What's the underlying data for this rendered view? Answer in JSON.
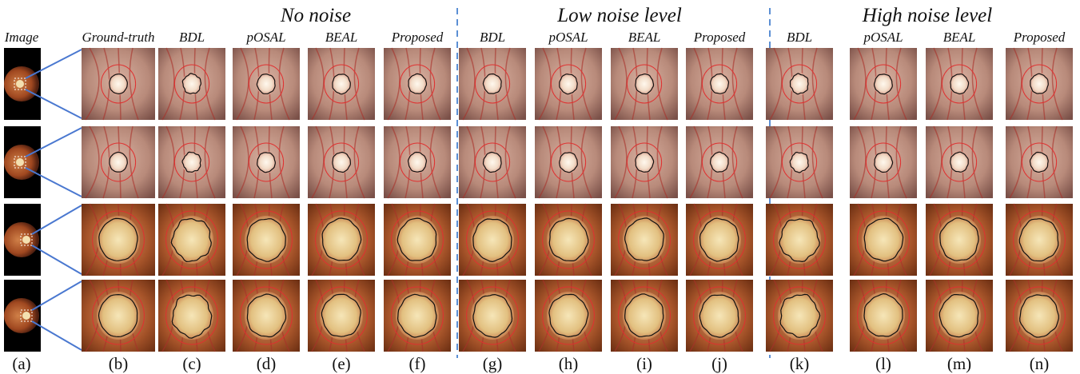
{
  "groups": [
    {
      "title": "No noise"
    },
    {
      "title": "Low noise level"
    },
    {
      "title": "High noise level"
    }
  ],
  "columns": [
    {
      "label": "Image",
      "letter": "(a)"
    },
    {
      "label": "Ground-truth",
      "letter": "(b)"
    },
    {
      "label": "BDL",
      "letter": "(c)"
    },
    {
      "label": "pOSAL",
      "letter": "(d)"
    },
    {
      "label": "BEAL",
      "letter": "(e)"
    },
    {
      "label": "Proposed",
      "letter": "(f)"
    },
    {
      "label": "BDL",
      "letter": "(g)"
    },
    {
      "label": "pOSAL",
      "letter": "(h)"
    },
    {
      "label": "BEAL",
      "letter": "(i)"
    },
    {
      "label": "Proposed",
      "letter": "(j)"
    },
    {
      "label": "BDL",
      "letter": "(k)"
    },
    {
      "label": "pOSAL",
      "letter": "(l)"
    },
    {
      "label": "BEAL",
      "letter": "(m)"
    },
    {
      "label": "Proposed",
      "letter": "(n)"
    }
  ]
}
